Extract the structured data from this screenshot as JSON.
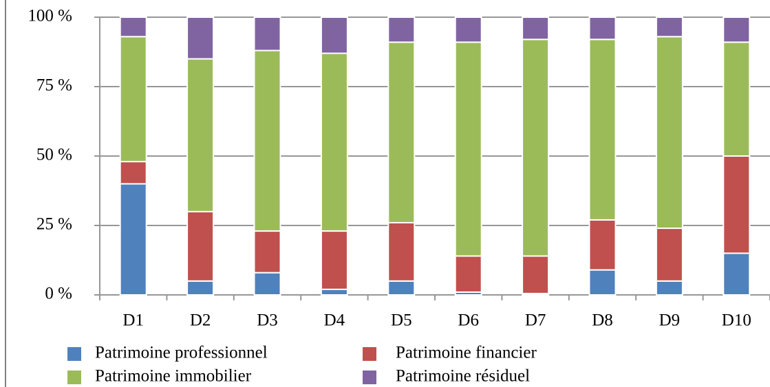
{
  "chart_data": {
    "type": "stacked_bar",
    "categories": [
      "D1",
      "D2",
      "D3",
      "D4",
      "D5",
      "D6",
      "D7",
      "D8",
      "D9",
      "D10"
    ],
    "series": [
      {
        "name": "Patrimoine professionnel",
        "color": "#4f81bd",
        "values": [
          40,
          5,
          8,
          2,
          5,
          1,
          0.5,
          9,
          5,
          15
        ]
      },
      {
        "name": "Patrimoine financier",
        "color": "#c0504d",
        "values": [
          8,
          25,
          15,
          21,
          21,
          13,
          13.5,
          18,
          19,
          35
        ]
      },
      {
        "name": "Patrimoine immobilier",
        "color": "#9bbb59",
        "values": [
          45,
          55,
          65,
          64,
          65,
          77,
          78,
          65,
          69,
          41
        ]
      },
      {
        "name": "Patrimoine résiduel",
        "color": "#8064a2",
        "values": [
          7,
          15,
          12,
          13,
          9,
          9,
          8,
          8,
          7,
          9
        ]
      }
    ],
    "ylim": [
      0,
      100
    ],
    "yticks": [
      {
        "value": 0,
        "label": "0 %"
      },
      {
        "value": 25,
        "label": "25 %"
      },
      {
        "value": 50,
        "label": "50 %"
      },
      {
        "value": 75,
        "label": "75 %"
      },
      {
        "value": 100,
        "label": "100 %"
      }
    ],
    "grid": true,
    "legend": "bottom"
  }
}
